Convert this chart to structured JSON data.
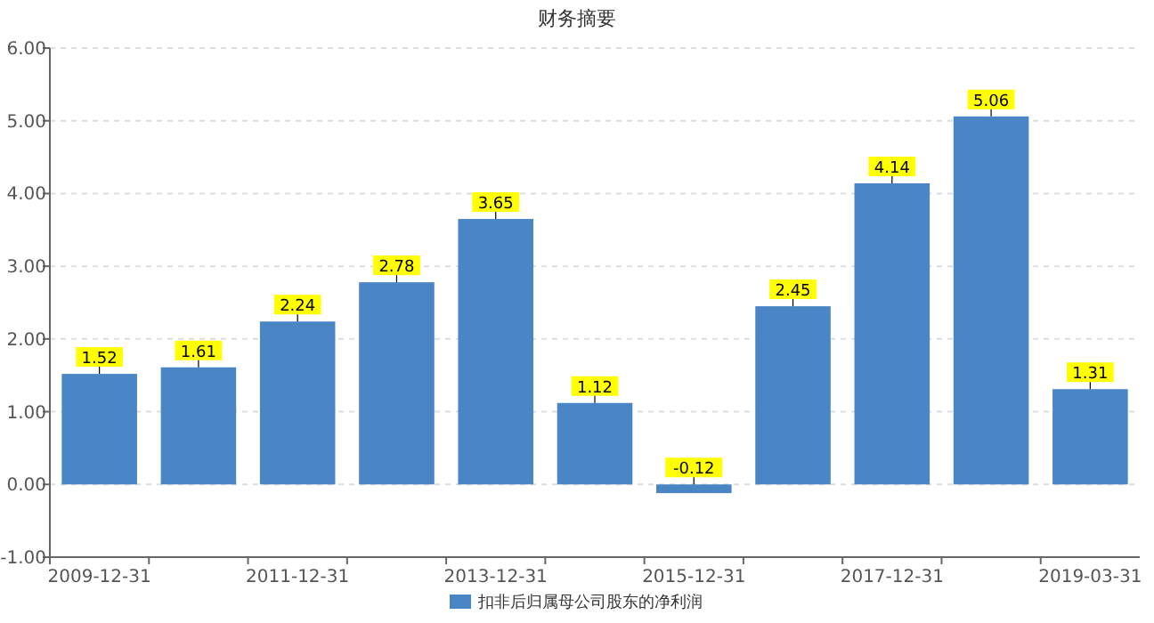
{
  "chart_data": {
    "type": "bar",
    "title": "财务摘要",
    "categories": [
      "2009-12-31",
      null,
      "2011-12-31",
      null,
      "2013-12-31",
      null,
      "2015-12-31",
      null,
      "2017-12-31",
      null,
      "2019-03-31"
    ],
    "series": [
      {
        "name": "扣非后归属母公司股东的净利润",
        "color": "#4a86c5",
        "values": [
          1.52,
          1.61,
          2.24,
          2.78,
          3.65,
          1.12,
          -0.12,
          2.45,
          4.14,
          5.06,
          1.31
        ]
      }
    ],
    "ylim": [
      -1,
      6
    ],
    "yticks": [
      {
        "value": -1,
        "label": "-1.00"
      },
      {
        "value": 0,
        "label": "0.00"
      },
      {
        "value": 1,
        "label": "1.00"
      },
      {
        "value": 2,
        "label": "2.00"
      },
      {
        "value": 3,
        "label": "3.00"
      },
      {
        "value": 4,
        "label": "4.00"
      },
      {
        "value": 5,
        "label": "5.00"
      },
      {
        "value": 6,
        "label": "6.00"
      }
    ],
    "grid": "y",
    "legend": "bottom",
    "data_labels": true
  }
}
